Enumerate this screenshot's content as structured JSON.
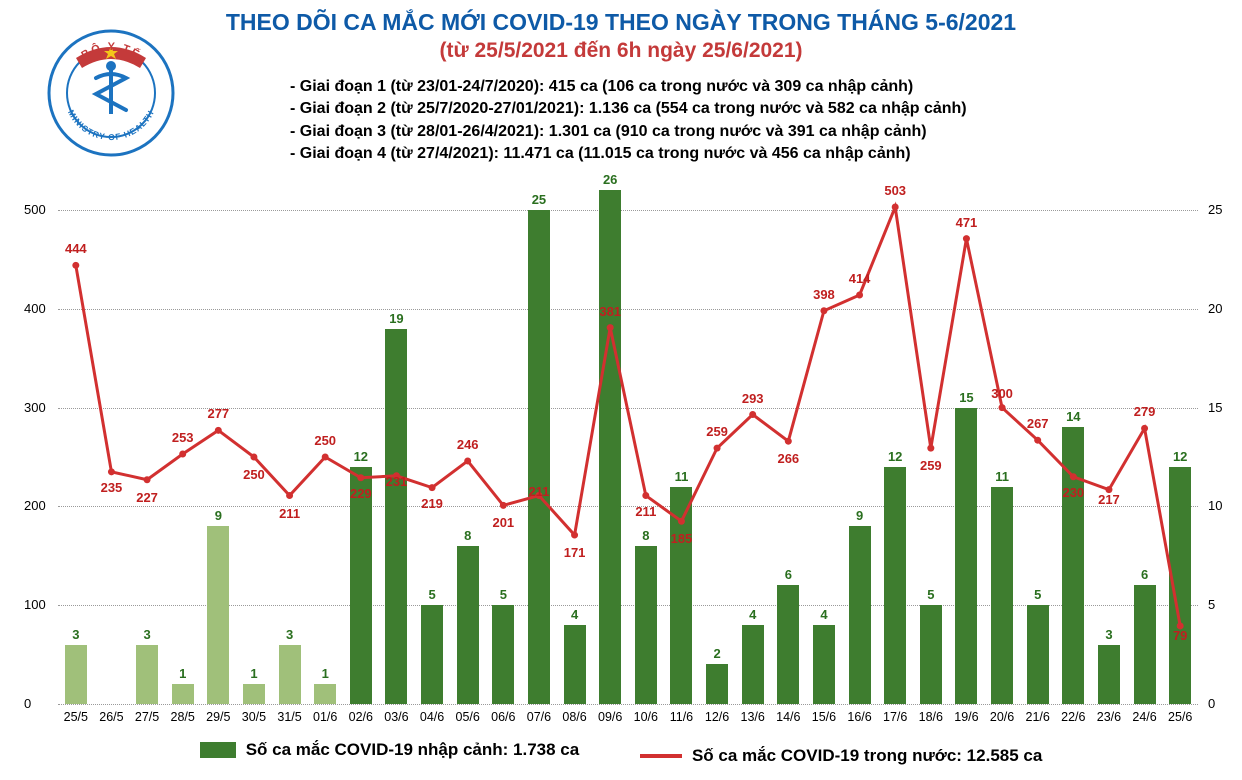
{
  "title_line1": "THEO DÕI CA MẮC MỚI COVID-19 THEO NGÀY TRONG THÁNG 5-6/2021",
  "title_line2": "(từ 25/5/2021 đến 6h ngày 25/6/2021)",
  "logo": {
    "outer_top": "BỘ Y TẾ",
    "outer_bottom": "MINISTRY OF HEALTH",
    "ring_color": "#1c73c0",
    "banner_color": "#c43a3a",
    "star_color": "#f4c51a"
  },
  "phases": [
    "- Giai đoạn 1 (từ 23/01-24/7/2020): 415 ca (106 ca trong nước và 309 ca nhập cảnh)",
    "- Giai đoạn 2 (từ 25/7/2020-27/01/2021): 1.136 ca (554 ca trong nước và 582 ca nhập cảnh)",
    "- Giai đoạn 3 (từ 28/01-26/4/2021): 1.301 ca (910 ca trong nước và 391 ca nhập cảnh)",
    "- Giai đoạn 4 (từ 27/4/2021): 11.471 ca (11.015 ca trong nước và 456 ca nhập cảnh)"
  ],
  "chart": {
    "y_left": {
      "min": 0,
      "max": 500,
      "step": 100
    },
    "y_right": {
      "min": 0,
      "max": 25,
      "step": 5
    },
    "bar_color_light": "#a0c07a",
    "bar_color_dark": "#3e7d2f",
    "bar_value_color": "#2a6f1f",
    "line_color": "#d23030",
    "line_value_color": "#c01f1f",
    "grid_color": "#9a9a9a",
    "categories": [
      "25/5",
      "26/5",
      "27/5",
      "28/5",
      "29/5",
      "30/5",
      "31/5",
      "01/6",
      "02/6",
      "03/6",
      "04/6",
      "05/6",
      "06/6",
      "07/6",
      "08/6",
      "09/6",
      "10/6",
      "11/6",
      "12/6",
      "13/6",
      "14/6",
      "15/6",
      "16/6",
      "17/6",
      "18/6",
      "19/6",
      "20/6",
      "21/6",
      "22/6",
      "23/6",
      "24/6",
      "25/6"
    ],
    "bars": [
      3,
      null,
      3,
      1,
      9,
      1,
      3,
      1,
      12,
      19,
      5,
      8,
      5,
      25,
      4,
      26,
      8,
      11,
      2,
      4,
      6,
      4,
      9,
      12,
      5,
      15,
      11,
      5,
      14,
      3,
      6,
      12
    ],
    "bar_light_mask": [
      true,
      true,
      true,
      true,
      true,
      true,
      true,
      true,
      false,
      false,
      false,
      false,
      false,
      false,
      false,
      false,
      false,
      false,
      false,
      false,
      false,
      false,
      false,
      false,
      false,
      false,
      false,
      false,
      false,
      false,
      false,
      false
    ],
    "line": [
      444,
      235,
      227,
      253,
      277,
      250,
      211,
      250,
      229,
      231,
      219,
      246,
      201,
      211,
      171,
      381,
      211,
      185,
      259,
      293,
      266,
      398,
      414,
      503,
      259,
      471,
      300,
      267,
      230,
      217,
      279,
      79
    ],
    "line_label_dy": [
      -18,
      14,
      16,
      -18,
      -18,
      16,
      16,
      -18,
      14,
      4,
      14,
      -18,
      16,
      -6,
      16,
      -18,
      14,
      16,
      -18,
      -18,
      16,
      -18,
      -18,
      -18,
      16,
      -18,
      -16,
      -18,
      14,
      8,
      -18,
      8
    ]
  },
  "legend": {
    "bar_label": "Số ca mắc COVID-19 nhập cảnh: 1.738 ca",
    "line_label": "Số ca mắc COVID-19 trong nước: 12.585 ca",
    "bar_color": "#3e7d2f",
    "line_color": "#d23030"
  }
}
